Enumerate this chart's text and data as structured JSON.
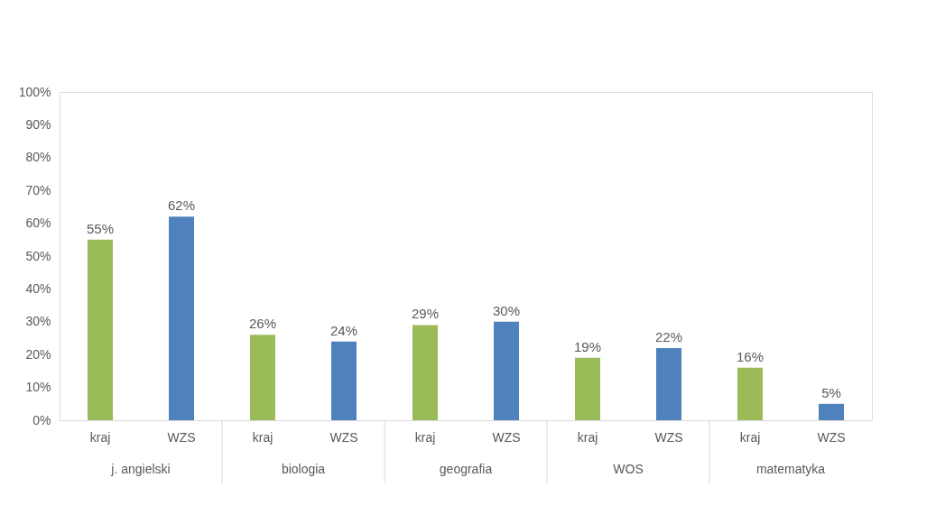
{
  "chart_data": {
    "type": "bar",
    "categories": [
      "kraj",
      "WZS",
      "kraj",
      "WZS",
      "kraj",
      "WZS",
      "kraj",
      "WZS",
      "kraj",
      "WZS"
    ],
    "values": [
      55,
      62,
      26,
      24,
      29,
      30,
      19,
      22,
      16,
      5
    ],
    "colors": [
      "#9bbb59",
      "#4f81bd",
      "#9bbb59",
      "#4f81bd",
      "#9bbb59",
      "#4f81bd",
      "#9bbb59",
      "#4f81bd",
      "#9bbb59",
      "#4f81bd"
    ],
    "value_labels": [
      "55%",
      "62%",
      "26%",
      "24%",
      "29%",
      "30%",
      "19%",
      "22%",
      "16%",
      "5%"
    ],
    "annotations": [
      "j. angielski",
      "biologia",
      "geografia",
      "WOS",
      "matematyka"
    ],
    "ylim": [
      0,
      100
    ],
    "yticks": [
      {
        "value": 0,
        "label": "0%"
      },
      {
        "value": 10,
        "label": "10%"
      },
      {
        "value": 20,
        "label": "20%"
      },
      {
        "value": 30,
        "label": "30%"
      },
      {
        "value": 40,
        "label": "40%"
      },
      {
        "value": 50,
        "label": "50%"
      },
      {
        "value": 60,
        "label": "60%"
      },
      {
        "value": 70,
        "label": "70%"
      },
      {
        "value": 80,
        "label": "80%"
      },
      {
        "value": 90,
        "label": "90%"
      },
      {
        "value": 100,
        "label": "100%"
      }
    ],
    "grid": false
  }
}
